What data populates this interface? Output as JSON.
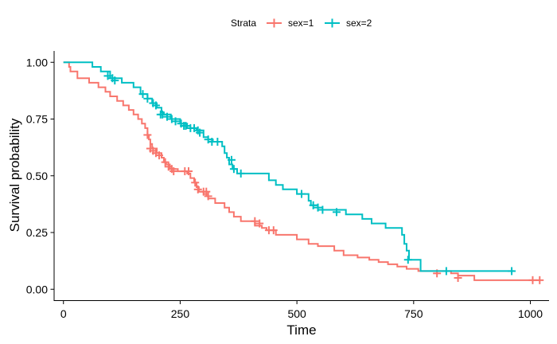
{
  "chart_data": {
    "type": "line",
    "subtype": "kaplan-meier survival curve",
    "title": "",
    "xlabel": "Time",
    "ylabel": "Survival probability",
    "xlim": [
      -20,
      1040
    ],
    "ylim": [
      -0.05,
      1.05
    ],
    "xticks": [
      0,
      250,
      500,
      750,
      1000
    ],
    "xtick_labels": [
      "0",
      "250",
      "500",
      "750",
      "1000"
    ],
    "yticks": [
      0,
      0.25,
      0.5,
      0.75,
      1
    ],
    "ytick_labels": [
      "0.00",
      "0.25",
      "0.50",
      "0.75",
      "1.00"
    ],
    "grid": false,
    "legend": {
      "position": "top",
      "title": "Strata",
      "entries": [
        "sex=1",
        "sex=2"
      ]
    },
    "series": [
      {
        "name": "sex=1",
        "color": "#F8766D",
        "steps": [
          [
            0,
            1.0
          ],
          [
            12,
            0.98
          ],
          [
            15,
            0.96
          ],
          [
            30,
            0.93
          ],
          [
            55,
            0.91
          ],
          [
            75,
            0.89
          ],
          [
            90,
            0.87
          ],
          [
            100,
            0.85
          ],
          [
            115,
            0.83
          ],
          [
            128,
            0.81
          ],
          [
            140,
            0.79
          ],
          [
            150,
            0.77
          ],
          [
            160,
            0.75
          ],
          [
            168,
            0.73
          ],
          [
            175,
            0.71
          ],
          [
            180,
            0.68
          ],
          [
            183,
            0.66
          ],
          [
            186,
            0.64
          ],
          [
            190,
            0.62
          ],
          [
            200,
            0.6
          ],
          [
            210,
            0.58
          ],
          [
            215,
            0.56
          ],
          [
            220,
            0.55
          ],
          [
            228,
            0.53
          ],
          [
            245,
            0.52
          ],
          [
            265,
            0.51
          ],
          [
            272,
            0.49
          ],
          [
            280,
            0.47
          ],
          [
            285,
            0.45
          ],
          [
            290,
            0.43
          ],
          [
            300,
            0.42
          ],
          [
            310,
            0.4
          ],
          [
            325,
            0.38
          ],
          [
            345,
            0.36
          ],
          [
            355,
            0.34
          ],
          [
            365,
            0.32
          ],
          [
            380,
            0.3
          ],
          [
            410,
            0.28
          ],
          [
            425,
            0.27
          ],
          [
            435,
            0.26
          ],
          [
            455,
            0.24
          ],
          [
            500,
            0.22
          ],
          [
            525,
            0.2
          ],
          [
            545,
            0.19
          ],
          [
            580,
            0.17
          ],
          [
            600,
            0.15
          ],
          [
            630,
            0.14
          ],
          [
            655,
            0.13
          ],
          [
            675,
            0.12
          ],
          [
            695,
            0.11
          ],
          [
            715,
            0.1
          ],
          [
            735,
            0.09
          ],
          [
            760,
            0.08
          ],
          [
            830,
            0.07
          ],
          [
            845,
            0.06
          ],
          [
            880,
            0.04
          ],
          [
            1020,
            0.04
          ]
        ],
        "censored": [
          [
            180,
            0.68
          ],
          [
            186,
            0.62
          ],
          [
            192,
            0.61
          ],
          [
            198,
            0.6
          ],
          [
            205,
            0.59
          ],
          [
            218,
            0.56
          ],
          [
            225,
            0.54
          ],
          [
            232,
            0.53
          ],
          [
            236,
            0.52
          ],
          [
            260,
            0.52
          ],
          [
            268,
            0.52
          ],
          [
            282,
            0.47
          ],
          [
            288,
            0.44
          ],
          [
            300,
            0.43
          ],
          [
            306,
            0.43
          ],
          [
            310,
            0.41
          ],
          [
            410,
            0.3
          ],
          [
            420,
            0.29
          ],
          [
            440,
            0.26
          ],
          [
            450,
            0.26
          ],
          [
            800,
            0.07
          ],
          [
            845,
            0.05
          ],
          [
            1005,
            0.04
          ],
          [
            1020,
            0.04
          ]
        ]
      },
      {
        "name": "sex=2",
        "color": "#00BFC4",
        "steps": [
          [
            0,
            1.0
          ],
          [
            62,
            0.98
          ],
          [
            80,
            0.96
          ],
          [
            100,
            0.93
          ],
          [
            125,
            0.91
          ],
          [
            150,
            0.89
          ],
          [
            165,
            0.86
          ],
          [
            180,
            0.84
          ],
          [
            190,
            0.82
          ],
          [
            200,
            0.8
          ],
          [
            210,
            0.78
          ],
          [
            215,
            0.77
          ],
          [
            230,
            0.75
          ],
          [
            250,
            0.73
          ],
          [
            265,
            0.71
          ],
          [
            285,
            0.7
          ],
          [
            300,
            0.67
          ],
          [
            310,
            0.66
          ],
          [
            320,
            0.65
          ],
          [
            340,
            0.63
          ],
          [
            345,
            0.6
          ],
          [
            350,
            0.58
          ],
          [
            355,
            0.55
          ],
          [
            362,
            0.53
          ],
          [
            372,
            0.51
          ],
          [
            440,
            0.48
          ],
          [
            455,
            0.46
          ],
          [
            470,
            0.44
          ],
          [
            500,
            0.42
          ],
          [
            525,
            0.39
          ],
          [
            530,
            0.37
          ],
          [
            545,
            0.35
          ],
          [
            605,
            0.33
          ],
          [
            640,
            0.31
          ],
          [
            660,
            0.29
          ],
          [
            690,
            0.27
          ],
          [
            725,
            0.24
          ],
          [
            730,
            0.2
          ],
          [
            735,
            0.17
          ],
          [
            740,
            0.13
          ],
          [
            765,
            0.08
          ],
          [
            965,
            0.08
          ]
        ],
        "censored": [
          [
            95,
            0.94
          ],
          [
            105,
            0.93
          ],
          [
            110,
            0.92
          ],
          [
            170,
            0.86
          ],
          [
            180,
            0.84
          ],
          [
            192,
            0.82
          ],
          [
            198,
            0.81
          ],
          [
            208,
            0.77
          ],
          [
            212,
            0.77
          ],
          [
            222,
            0.76
          ],
          [
            232,
            0.75
          ],
          [
            240,
            0.74
          ],
          [
            252,
            0.73
          ],
          [
            258,
            0.72
          ],
          [
            262,
            0.72
          ],
          [
            272,
            0.71
          ],
          [
            280,
            0.71
          ],
          [
            288,
            0.7
          ],
          [
            292,
            0.69
          ],
          [
            310,
            0.66
          ],
          [
            318,
            0.65
          ],
          [
            330,
            0.65
          ],
          [
            360,
            0.57
          ],
          [
            365,
            0.53
          ],
          [
            380,
            0.51
          ],
          [
            510,
            0.42
          ],
          [
            535,
            0.37
          ],
          [
            545,
            0.36
          ],
          [
            555,
            0.35
          ],
          [
            585,
            0.34
          ],
          [
            738,
            0.13
          ],
          [
            820,
            0.08
          ],
          [
            960,
            0.08
          ]
        ]
      }
    ]
  }
}
